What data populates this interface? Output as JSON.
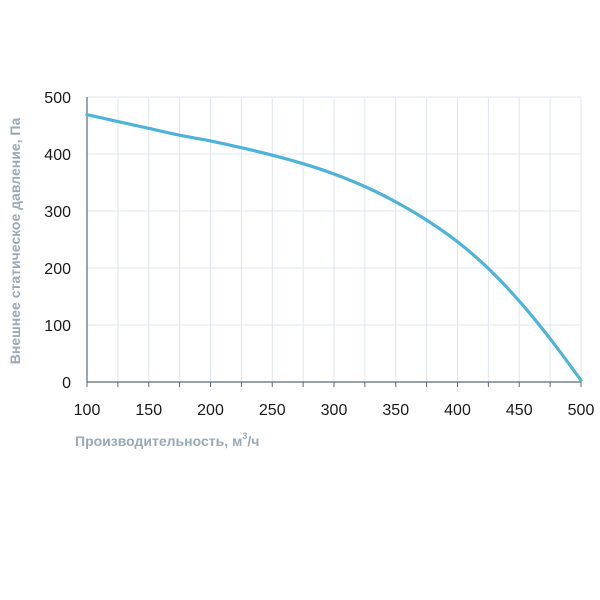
{
  "colors": {
    "line": "#4eb3da",
    "grid": "#dfe6ec",
    "axis": "#5a6a78",
    "axis_title": "#9aa9b6"
  },
  "chart_data": {
    "type": "line",
    "xlabel": "Производительность, м",
    "xlabel_sup": "3",
    "xlabel_unit": "/ч",
    "ylabel": "Внешнее статическое давление, Па",
    "xlim": [
      100,
      500
    ],
    "ylim": [
      0,
      500
    ],
    "xticks": [
      "100",
      "150",
      "200",
      "250",
      "300",
      "350",
      "400",
      "450",
      "500"
    ],
    "yticks": [
      "0",
      "100",
      "200",
      "300",
      "400",
      "500"
    ],
    "x_minor_step": 25,
    "grid": true,
    "series": [
      {
        "x": [
          100,
          125,
          150,
          175,
          200,
          225,
          250,
          275,
          300,
          325,
          350,
          375,
          400,
          425,
          450,
          475,
          500
        ],
        "y": [
          469,
          457,
          445,
          433,
          423,
          411,
          398,
          383,
          365,
          343,
          316,
          284,
          246,
          199,
          142,
          76,
          3
        ]
      }
    ]
  }
}
